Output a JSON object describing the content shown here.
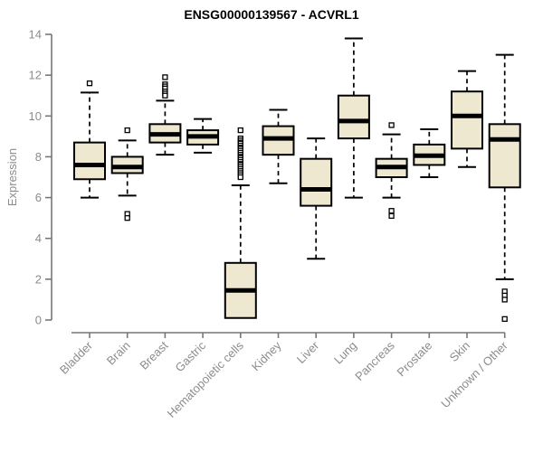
{
  "colors": {
    "background": "#ffffff",
    "box_fill": "#ede8cf",
    "box_border": "#000000",
    "median_line": "#000000",
    "whisker": "#000000",
    "outlier_stroke": "#000000",
    "outlier_fill": "#ffffff",
    "axis_line": "#777777",
    "tick_text": "#8c8c8c",
    "title_text": "#000000"
  },
  "chart_data": {
    "type": "boxplot",
    "title": "ENSG00000139567 - ACVRL1",
    "xlabel": "",
    "ylabel": "Expression",
    "ylim": [
      0,
      14
    ],
    "yticks": [
      0,
      2,
      4,
      6,
      8,
      10,
      12,
      14
    ],
    "grid": false,
    "legend": false,
    "categories": [
      "Bladder",
      "Brain",
      "Breast",
      "Gastric",
      "Hematopoietic cells",
      "Kidney",
      "Liver",
      "Lung",
      "Pancreas",
      "Prostate",
      "Skin",
      "Unknown / Other"
    ],
    "series": [
      {
        "name": "Bladder",
        "whisker_low": 6.0,
        "q1": 6.9,
        "median": 7.6,
        "q3": 8.7,
        "whisker_high": 11.15,
        "outliers": [
          11.6
        ]
      },
      {
        "name": "Brain",
        "whisker_low": 6.1,
        "q1": 7.2,
        "median": 7.5,
        "q3": 8.0,
        "whisker_high": 8.8,
        "outliers": [
          9.3,
          5.2,
          5.0
        ]
      },
      {
        "name": "Breast",
        "whisker_low": 8.1,
        "q1": 8.7,
        "median": 9.1,
        "q3": 9.6,
        "whisker_high": 10.75,
        "outliers": [
          11.9,
          11.55,
          11.45,
          11.35,
          11.2,
          11.1,
          11.0
        ]
      },
      {
        "name": "Gastric",
        "whisker_low": 8.2,
        "q1": 8.6,
        "median": 9.0,
        "q3": 9.3,
        "whisker_high": 9.85,
        "outliers": []
      },
      {
        "name": "Hematopoietic cells",
        "whisker_low": 0.1,
        "q1": 0.1,
        "median": 1.45,
        "q3": 2.8,
        "whisker_high": 6.6,
        "outliers": [
          9.3,
          8.9,
          8.8,
          8.7,
          8.65,
          8.55,
          8.45,
          8.4,
          8.3,
          8.2,
          8.1,
          8.0,
          7.95,
          7.85,
          7.75,
          7.65,
          7.6,
          7.5,
          7.4,
          7.3,
          7.2,
          7.1,
          7.0
        ]
      },
      {
        "name": "Kidney",
        "whisker_low": 6.7,
        "q1": 8.1,
        "median": 8.9,
        "q3": 9.5,
        "whisker_high": 10.3,
        "outliers": []
      },
      {
        "name": "Liver",
        "whisker_low": 3.0,
        "q1": 5.6,
        "median": 6.4,
        "q3": 7.9,
        "whisker_high": 8.9,
        "outliers": []
      },
      {
        "name": "Lung",
        "whisker_low": 6.0,
        "q1": 8.9,
        "median": 9.75,
        "q3": 11.0,
        "whisker_high": 13.8,
        "outliers": []
      },
      {
        "name": "Pancreas",
        "whisker_low": 6.0,
        "q1": 7.0,
        "median": 7.5,
        "q3": 7.9,
        "whisker_high": 9.1,
        "outliers": [
          9.55,
          5.35,
          5.1
        ]
      },
      {
        "name": "Prostate",
        "whisker_low": 7.0,
        "q1": 7.6,
        "median": 8.05,
        "q3": 8.6,
        "whisker_high": 9.35,
        "outliers": []
      },
      {
        "name": "Skin",
        "whisker_low": 7.5,
        "q1": 8.4,
        "median": 10.0,
        "q3": 11.2,
        "whisker_high": 12.2,
        "outliers": []
      },
      {
        "name": "Unknown / Other",
        "whisker_low": 2.0,
        "q1": 6.5,
        "median": 8.85,
        "q3": 9.6,
        "whisker_high": 13.0,
        "outliers": [
          1.4,
          1.2,
          1.0,
          0.05
        ]
      }
    ]
  }
}
